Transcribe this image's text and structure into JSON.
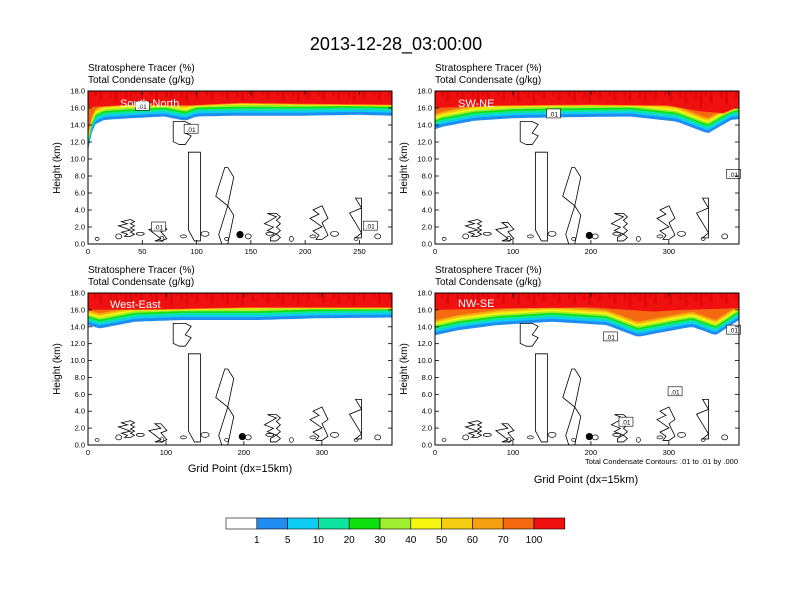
{
  "title": "2013-12-28_03:00:00",
  "panel_line1": "Stratosphere Tracer   (%)",
  "panel_line2": "Total Condensate   (g/kg)",
  "ylabel": "Height (km)",
  "xlabel": "Grid Point (dx=15km)",
  "contour_note": "Total Condensate Contours: .01 to .01 by .000",
  "chart_data": {
    "type": "heatmap",
    "description_units": {
      "x": "grid point",
      "y": "km"
    },
    "colorbar": {
      "colors": [
        "#ffffff",
        "#1e8cf0",
        "#0dcdf5",
        "#10e5a0",
        "#10e010",
        "#a0ee30",
        "#f5f510",
        "#f5cc10",
        "#f5a010",
        "#f56a10",
        "#f01010"
      ],
      "labels": [
        "1",
        "5",
        "10",
        "20",
        "30",
        "40",
        "50",
        "60",
        "70",
        "100"
      ]
    },
    "panels": [
      {
        "name": "South-North",
        "xlim": [
          0,
          280
        ],
        "xticks": [
          0,
          50,
          100,
          150,
          200,
          250
        ],
        "ylim": [
          0,
          18
        ],
        "yticks": [
          "0.0",
          "2.0",
          "4.0",
          "6.0",
          "8.0",
          "10.0",
          "12.0",
          "14.0",
          "16.0",
          "18.0"
        ],
        "marker": {
          "x": 140,
          "y": 1.1
        },
        "contour_labels": [
          {
            "text": ".01",
            "x": 50,
            "y": 16.2
          },
          {
            "text": ".01",
            "x": 95,
            "y": 13.5
          },
          {
            "text": ".01",
            "x": 65,
            "y": 2.0
          },
          {
            "text": ".01",
            "x": 260,
            "y": 2.1
          }
        ],
        "blue_base": [
          [
            0,
            11
          ],
          [
            5,
            14
          ],
          [
            15,
            14.6
          ],
          [
            40,
            14.8
          ],
          [
            70,
            15
          ],
          [
            90,
            14.5
          ],
          [
            100,
            15
          ],
          [
            140,
            15.1
          ],
          [
            200,
            15.1
          ],
          [
            250,
            15.2
          ],
          [
            280,
            15.1
          ]
        ],
        "red_base": [
          [
            0,
            16.1
          ],
          [
            40,
            16.4
          ],
          [
            90,
            16.3
          ],
          [
            140,
            16.6
          ],
          [
            200,
            16.5
          ],
          [
            280,
            16.4
          ]
        ]
      },
      {
        "name": "SW-NE",
        "xlim": [
          0,
          390
        ],
        "xticks": [
          0,
          100,
          200,
          300
        ],
        "ylim": [
          0,
          18
        ],
        "yticks": [
          "0.0",
          "2.0",
          "4.0",
          "6.0",
          "8.0",
          "10.0",
          "12.0",
          "14.0",
          "16.0",
          "18.0"
        ],
        "marker": {
          "x": 198,
          "y": 1.0
        },
        "contour_labels": [
          {
            "text": ".01",
            "x": 152,
            "y": 15.3
          },
          {
            "text": ".01",
            "x": 383,
            "y": 8.2
          }
        ],
        "blue_base": [
          [
            0,
            13.5
          ],
          [
            10,
            13.8
          ],
          [
            50,
            14.5
          ],
          [
            100,
            14.8
          ],
          [
            150,
            14.9
          ],
          [
            250,
            15
          ],
          [
            310,
            14.4
          ],
          [
            350,
            13
          ],
          [
            380,
            14.6
          ],
          [
            390,
            14.7
          ]
        ],
        "red_base": [
          [
            0,
            16
          ],
          [
            80,
            16.3
          ],
          [
            200,
            16.4
          ],
          [
            300,
            16.3
          ],
          [
            340,
            15.6
          ],
          [
            370,
            15.4
          ],
          [
            390,
            16.2
          ]
        ]
      },
      {
        "name": "West-East",
        "xlim": [
          0,
          390
        ],
        "xticks": [
          0,
          100,
          200,
          300
        ],
        "ylim": [
          0,
          18
        ],
        "yticks": [
          "0.0",
          "2.0",
          "4.0",
          "6.0",
          "8.0",
          "10.0",
          "12.0",
          "14.0",
          "16.0",
          "18.0"
        ],
        "marker": {
          "x": 198,
          "y": 1.0
        },
        "contour_labels": [],
        "blue_base": [
          [
            0,
            14.2
          ],
          [
            15,
            13.8
          ],
          [
            60,
            14.6
          ],
          [
            120,
            14.8
          ],
          [
            220,
            14.8
          ],
          [
            290,
            15
          ],
          [
            390,
            15.1
          ]
        ],
        "red_base": [
          [
            0,
            16
          ],
          [
            100,
            16.1
          ],
          [
            200,
            16.3
          ],
          [
            300,
            16.3
          ],
          [
            390,
            16.3
          ]
        ]
      },
      {
        "name": "NW-SE",
        "xlim": [
          0,
          390
        ],
        "xticks": [
          0,
          100,
          200,
          300
        ],
        "ylim": [
          0,
          18
        ],
        "yticks": [
          "0.0",
          "2.0",
          "4.0",
          "6.0",
          "8.0",
          "10.0",
          "12.0",
          "14.0",
          "16.0",
          "18.0"
        ],
        "marker": {
          "x": 198,
          "y": 1.0
        },
        "contour_labels": [
          {
            "text": ".01",
            "x": 225,
            "y": 12.8
          },
          {
            "text": ".01",
            "x": 383,
            "y": 13.6
          },
          {
            "text": ".01",
            "x": 308,
            "y": 6.3
          },
          {
            "text": ".01",
            "x": 245,
            "y": 2.7
          }
        ],
        "blue_base": [
          [
            0,
            13
          ],
          [
            30,
            13.6
          ],
          [
            80,
            14.2
          ],
          [
            150,
            14.6
          ],
          [
            220,
            14.2
          ],
          [
            260,
            12.8
          ],
          [
            300,
            13.5
          ],
          [
            330,
            14
          ],
          [
            360,
            13
          ],
          [
            390,
            14.8
          ]
        ],
        "red_base": [
          [
            0,
            16
          ],
          [
            100,
            16.2
          ],
          [
            200,
            16.3
          ],
          [
            280,
            15.8
          ],
          [
            320,
            16
          ],
          [
            390,
            16.2
          ]
        ]
      }
    ]
  }
}
